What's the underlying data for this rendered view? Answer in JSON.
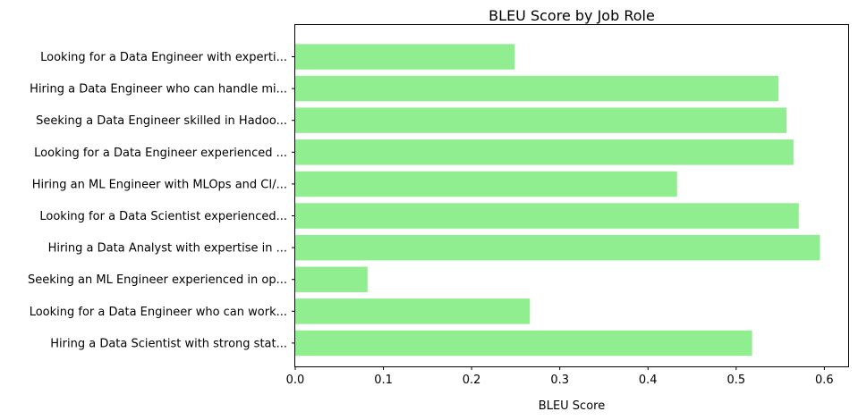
{
  "chart_data": {
    "type": "bar",
    "orientation": "horizontal",
    "title": "BLEU Score by Job Role",
    "xlabel": "BLEU Score",
    "ylabel": "",
    "xlim": [
      0,
      0.627
    ],
    "xticks": [
      "0.0",
      "0.1",
      "0.2",
      "0.3",
      "0.4",
      "0.5",
      "0.6"
    ],
    "xtick_values": [
      0.0,
      0.1,
      0.2,
      0.3,
      0.4,
      0.5,
      0.6
    ],
    "bar_color": "#90ee90",
    "grid": false,
    "categories": [
      "Looking for a Data Engineer with experti...",
      "Hiring a Data Engineer who can handle mi...",
      "Seeking a Data Engineer skilled in Hadoo...",
      "Looking for a Data Engineer experienced ...",
      "Hiring an ML Engineer with MLOps and CI/...",
      "Looking for a Data Scientist experienced...",
      "Hiring a Data Analyst with expertise in ...",
      "Seeking an ML Engineer experienced in op...",
      "Looking for a Data Engineer who can work...",
      "Hiring a Data Scientist with strong stat..."
    ],
    "values": [
      0.249,
      0.548,
      0.557,
      0.565,
      0.433,
      0.571,
      0.595,
      0.082,
      0.266,
      0.518
    ]
  }
}
